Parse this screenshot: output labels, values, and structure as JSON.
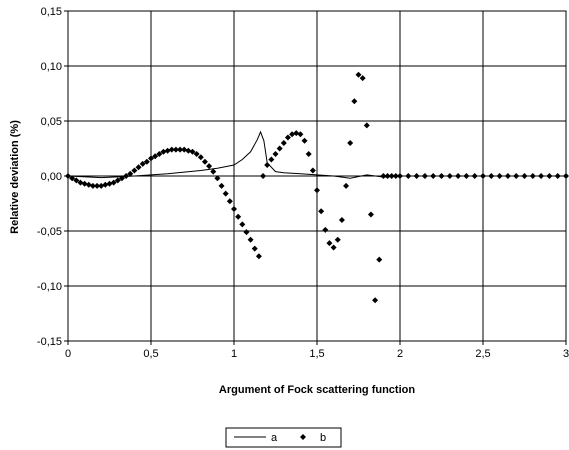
{
  "chart_data": {
    "type": "scatter",
    "title": "",
    "xlabel": "Argument of Fock scattering function",
    "ylabel": "Relative deviation (%)",
    "xlim": [
      0,
      3
    ],
    "ylim": [
      -0.15,
      0.15
    ],
    "xticks": [
      0,
      0.5,
      1,
      1.5,
      2,
      2.5,
      3
    ],
    "yticks": [
      -0.15,
      -0.1,
      -0.05,
      0,
      0.05,
      0.1,
      0.15
    ],
    "xtick_labels": [
      "0",
      "0,5",
      "1",
      "1,5",
      "2",
      "2,5",
      "3"
    ],
    "ytick_labels": [
      "-0,15",
      "-0,10",
      "-0,05",
      "0,00",
      "0,05",
      "0,10",
      "0,15"
    ],
    "grid": true,
    "legend_position": "bottom-center",
    "series": [
      {
        "name": "a",
        "style": "line",
        "color": "#000000",
        "x": [
          0,
          0.2,
          0.4,
          0.6,
          0.8,
          0.9,
          1.0,
          1.05,
          1.1,
          1.14,
          1.16,
          1.18,
          1.2,
          1.25,
          1.3,
          1.4,
          1.5,
          1.6,
          1.7,
          1.8,
          1.9,
          2.0,
          2.5,
          3.0
        ],
        "y": [
          0,
          -0.0015,
          0,
          0.002,
          0.005,
          0.007,
          0.01,
          0.015,
          0.022,
          0.033,
          0.04,
          0.032,
          0.012,
          0.004,
          0.003,
          0.002,
          0.001,
          0.0,
          -0.002,
          0.001,
          -0.001,
          0,
          0,
          0
        ]
      },
      {
        "name": "b",
        "style": "diamond",
        "color": "#000000",
        "x": [
          0,
          0.025,
          0.05,
          0.075,
          0.1,
          0.125,
          0.15,
          0.175,
          0.2,
          0.225,
          0.25,
          0.275,
          0.3,
          0.325,
          0.35,
          0.375,
          0.4,
          0.425,
          0.45,
          0.475,
          0.5,
          0.525,
          0.55,
          0.575,
          0.6,
          0.625,
          0.65,
          0.675,
          0.7,
          0.725,
          0.75,
          0.775,
          0.8,
          0.825,
          0.85,
          0.875,
          0.9,
          0.925,
          0.95,
          0.975,
          1.0,
          1.025,
          1.05,
          1.075,
          1.1,
          1.125,
          1.15,
          1.175,
          1.2,
          1.225,
          1.25,
          1.275,
          1.3,
          1.325,
          1.35,
          1.375,
          1.4,
          1.425,
          1.45,
          1.475,
          1.5,
          1.525,
          1.55,
          1.575,
          1.6,
          1.625,
          1.65,
          1.675,
          1.7,
          1.725,
          1.75,
          1.775,
          1.8,
          1.825,
          1.85,
          1.875,
          1.9,
          1.925,
          1.95,
          1.975,
          2.0,
          2.05,
          2.1,
          2.15,
          2.2,
          2.25,
          2.3,
          2.35,
          2.4,
          2.45,
          2.5,
          2.55,
          2.6,
          2.65,
          2.7,
          2.75,
          2.8,
          2.85,
          2.9,
          2.95,
          3.0
        ],
        "y": [
          0,
          -0.002,
          -0.004,
          -0.006,
          -0.007,
          -0.008,
          -0.009,
          -0.009,
          -0.009,
          -0.008,
          -0.007,
          -0.006,
          -0.004,
          -0.002,
          0.0,
          0.002,
          0.005,
          0.008,
          0.011,
          0.013,
          0.016,
          0.018,
          0.02,
          0.022,
          0.023,
          0.024,
          0.024,
          0.024,
          0.024,
          0.023,
          0.022,
          0.02,
          0.017,
          0.013,
          0.009,
          0.004,
          -0.002,
          -0.009,
          -0.016,
          -0.023,
          -0.03,
          -0.037,
          -0.044,
          -0.051,
          -0.058,
          -0.066,
          -0.073,
          0.0,
          0.01,
          0.015,
          0.02,
          0.025,
          0.03,
          0.035,
          0.038,
          0.039,
          0.038,
          0.032,
          0.02,
          0.005,
          -0.013,
          -0.032,
          -0.049,
          -0.061,
          -0.065,
          -0.058,
          -0.04,
          -0.009,
          0.03,
          0.068,
          0.092,
          0.089,
          0.046,
          -0.035,
          -0.113,
          -0.076,
          0.0,
          0.0,
          0.0,
          0.0,
          0.0,
          0.0,
          0.0,
          0.0,
          0.0,
          0.0,
          0.0,
          0.0,
          0.0,
          0.0,
          0.0,
          0.0,
          0.0,
          0.0,
          0.0,
          0.0,
          0.0,
          0.0,
          0.0,
          0.0,
          0.0
        ]
      }
    ]
  }
}
